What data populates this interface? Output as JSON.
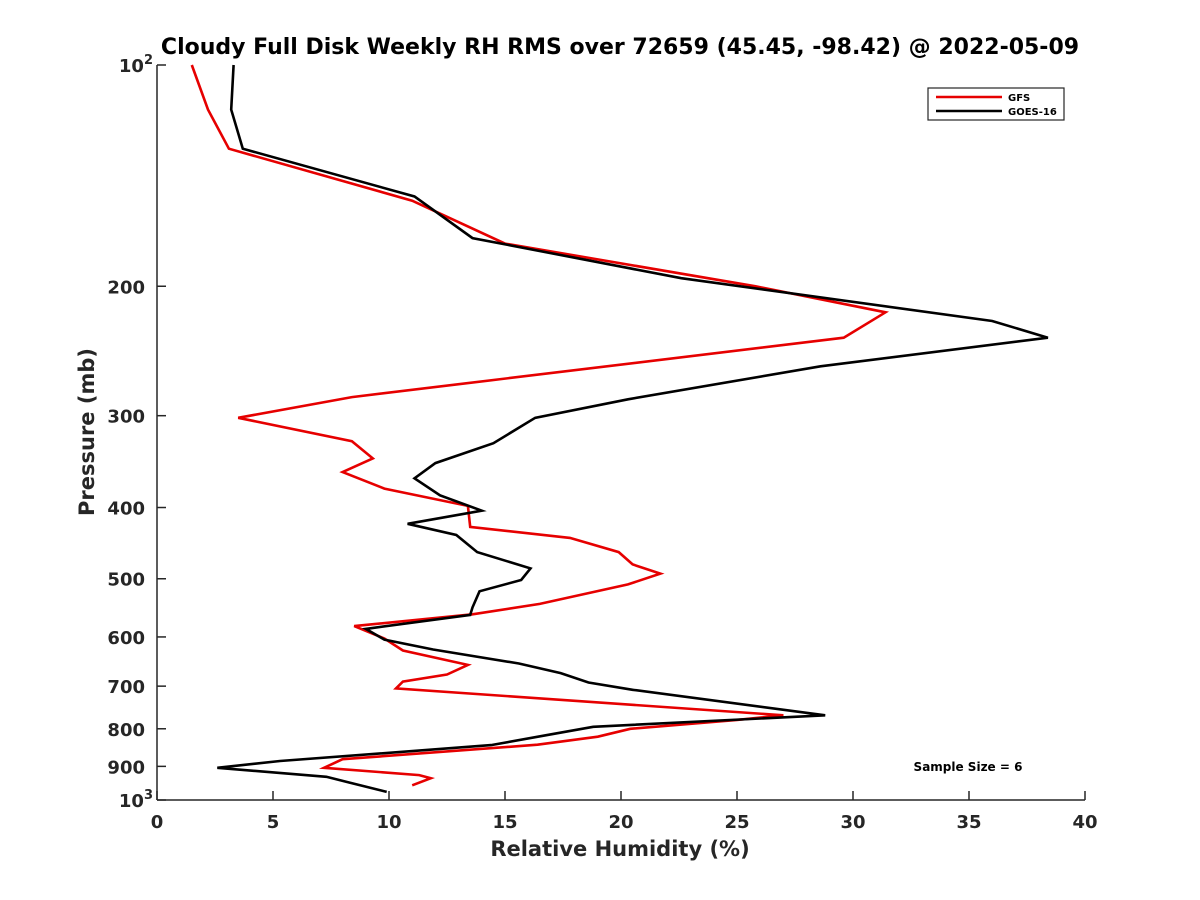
{
  "chart_data": {
    "type": "line",
    "title": "Cloudy Full Disk Weekly RH RMS over 72659 (45.45, -98.42) @ 2022-05-09",
    "xlabel": "Relative Humidity (%)",
    "ylabel": "Pressure (mb)",
    "xlim": [
      0,
      40
    ],
    "ylim": [
      100,
      1000
    ],
    "yscale": "log",
    "yreversed": true,
    "grid": false,
    "legend_position": "top-right",
    "x_ticks": [
      0,
      5,
      10,
      15,
      20,
      25,
      30,
      35,
      40
    ],
    "y_ticks": [
      {
        "value": 100,
        "label": "10",
        "sup": "2"
      },
      {
        "value": 200,
        "label": "200"
      },
      {
        "value": 300,
        "label": "300"
      },
      {
        "value": 400,
        "label": "400"
      },
      {
        "value": 500,
        "label": "500"
      },
      {
        "value": 600,
        "label": "600"
      },
      {
        "value": 700,
        "label": "700"
      },
      {
        "value": 800,
        "label": "800"
      },
      {
        "value": 900,
        "label": "900"
      },
      {
        "value": 1000,
        "label": "10",
        "sup": "3"
      }
    ],
    "annotation": "Sample Size = 6",
    "series": [
      {
        "name": "GFS",
        "color": "#e60000",
        "points": [
          [
            1.5,
            100
          ],
          [
            2.2,
            115
          ],
          [
            3.1,
            130
          ],
          [
            11.0,
            153
          ],
          [
            15.0,
            175
          ],
          [
            25.8,
            200
          ],
          [
            31.4,
            217
          ],
          [
            29.6,
            235
          ],
          [
            8.4,
            283
          ],
          [
            3.5,
            302
          ],
          [
            8.4,
            325
          ],
          [
            9.3,
            343
          ],
          [
            8.0,
            358
          ],
          [
            9.8,
            377
          ],
          [
            13.4,
            398
          ],
          [
            13.5,
            425
          ],
          [
            17.8,
            440
          ],
          [
            19.9,
            460
          ],
          [
            20.5,
            478
          ],
          [
            21.7,
            492
          ],
          [
            20.3,
            509
          ],
          [
            16.5,
            541
          ],
          [
            13.6,
            559
          ],
          [
            8.5,
            580
          ],
          [
            9.8,
            603
          ],
          [
            10.6,
            626
          ],
          [
            13.4,
            655
          ],
          [
            12.5,
            675
          ],
          [
            10.6,
            690
          ],
          [
            10.3,
            705
          ],
          [
            27.0,
            767
          ],
          [
            25.0,
            778
          ],
          [
            20.4,
            800
          ],
          [
            19.0,
            820
          ],
          [
            16.4,
            841
          ],
          [
            8.0,
            880
          ],
          [
            7.2,
            904
          ],
          [
            11.3,
            925
          ],
          [
            11.8,
            934
          ],
          [
            11.0,
            955
          ]
        ]
      },
      {
        "name": "GOES-16",
        "color": "#000000",
        "points": [
          [
            3.3,
            100
          ],
          [
            3.2,
            115
          ],
          [
            3.7,
            130
          ],
          [
            11.1,
            151
          ],
          [
            13.6,
            172
          ],
          [
            22.6,
            195
          ],
          [
            36.0,
            223
          ],
          [
            38.4,
            235
          ],
          [
            28.6,
            257
          ],
          [
            20.3,
            285
          ],
          [
            16.3,
            302
          ],
          [
            14.5,
            327
          ],
          [
            12.0,
            348
          ],
          [
            11.1,
            365
          ],
          [
            12.2,
            385
          ],
          [
            14.0,
            404
          ],
          [
            10.8,
            421
          ],
          [
            12.9,
            436
          ],
          [
            13.8,
            460
          ],
          [
            16.1,
            484
          ],
          [
            15.7,
            502
          ],
          [
            13.9,
            520
          ],
          [
            13.6,
            547
          ],
          [
            13.5,
            560
          ],
          [
            9.0,
            585
          ],
          [
            9.8,
            605
          ],
          [
            11.9,
            624
          ],
          [
            15.6,
            652
          ],
          [
            17.4,
            672
          ],
          [
            18.6,
            692
          ],
          [
            20.5,
            708
          ],
          [
            28.8,
            767
          ],
          [
            18.8,
            795
          ],
          [
            16.9,
            815
          ],
          [
            14.4,
            842
          ],
          [
            5.3,
            885
          ],
          [
            2.6,
            904
          ],
          [
            7.3,
            930
          ],
          [
            8.3,
            947
          ],
          [
            9.9,
            975
          ]
        ]
      }
    ]
  }
}
